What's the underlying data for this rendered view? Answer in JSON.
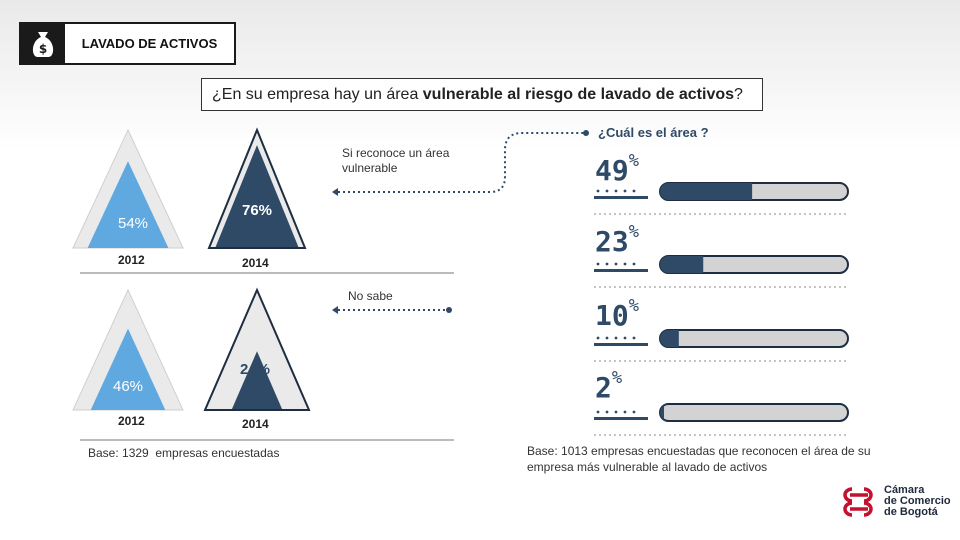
{
  "header": {
    "tag_title": "LAVADO DE ACTIVOS",
    "tag_icon": "money-bag-icon",
    "question_prefix": "¿En su empresa hay un área ",
    "question_bold": "vulnerable al riesgo de lavado de activos",
    "question_suffix": "?"
  },
  "colors": {
    "light_blue": "#5fa8e0",
    "dark_navy": "#2e4a66",
    "triangle_bg": "#eaeaea",
    "bar_track": "#d3d3d3",
    "logo_red": "#c4112f"
  },
  "chart_data": [
    {
      "type": "triangle-fill",
      "group": "Si reconoce un área vulnerable",
      "categories": [
        "2012",
        "2014"
      ],
      "values": [
        54,
        76
      ],
      "labels": [
        "54%",
        "76%"
      ]
    },
    {
      "type": "triangle-fill",
      "group": "No sabe",
      "categories": [
        "2012",
        "2014"
      ],
      "values": [
        46,
        24
      ],
      "labels": [
        "46%",
        "24%"
      ]
    },
    {
      "type": "bar",
      "title": "¿Cuál es el área ?",
      "values": [
        49,
        23,
        10,
        2
      ],
      "labels": [
        "49",
        "23",
        "10",
        "2"
      ],
      "unit": "%",
      "xlim": [
        0,
        100
      ]
    }
  ],
  "left": {
    "note_yes": "Si reconoce un área vulnerable",
    "note_no": "No sabe",
    "base": "Base: 1329  empresas encuestadas"
  },
  "right": {
    "base": "Base: 1013  empresas encuestadas que reconocen el área de su empresa más vulnerable al lavado de activos"
  },
  "logo": {
    "line1": "Cámara",
    "line2": "de Comercio",
    "line3": "de Bogotá"
  }
}
